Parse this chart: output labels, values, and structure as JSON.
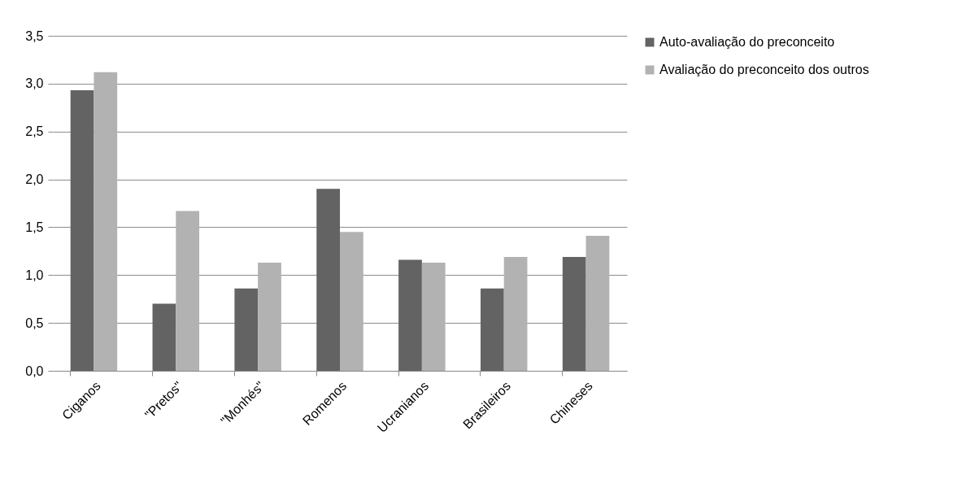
{
  "chart_data": {
    "type": "bar",
    "categories": [
      "Ciganos",
      "\"Pretos\"",
      "\"Monhés\"",
      "Romenos",
      "Ucranianos",
      "Brasileiros",
      "Chineses"
    ],
    "series": [
      {
        "name": "Auto-avaliação do preconceito",
        "color": "#636363",
        "values": [
          2.93,
          0.7,
          0.86,
          1.9,
          1.16,
          0.86,
          1.19
        ]
      },
      {
        "name": "Avaliação do preconceito dos outros",
        "color": "#b2b2b2",
        "values": [
          3.12,
          1.67,
          1.13,
          1.45,
          1.13,
          1.19,
          1.41
        ]
      }
    ],
    "ylim": [
      0,
      3.5
    ],
    "yticks": [
      {
        "value": 0,
        "label": "0,0"
      },
      {
        "value": 0.5,
        "label": "0,5"
      },
      {
        "value": 1,
        "label": "1,0"
      },
      {
        "value": 1.5,
        "label": "1,5"
      },
      {
        "value": 2,
        "label": "2,0"
      },
      {
        "value": 2.5,
        "label": "2,5"
      },
      {
        "value": 3,
        "label": "3,0"
      },
      {
        "value": 3.5,
        "label": "3,5"
      }
    ],
    "grid": "y",
    "legend": "right"
  }
}
